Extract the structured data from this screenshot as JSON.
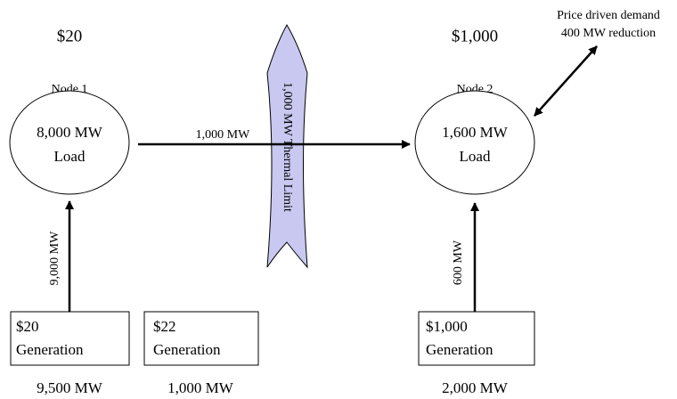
{
  "nodes": [
    {
      "price": "$20",
      "label": "Node 1",
      "load": "8,000 MW",
      "load_label": "Load"
    },
    {
      "price": "$1,000",
      "label": "Node 2",
      "load": "1,600 MW",
      "load_label": "Load"
    }
  ],
  "flow": "1,000 MW",
  "thermal_limit": "1,000 MW Thermal Limit",
  "demand_response": [
    "Price driven demand",
    "400 MW reduction"
  ],
  "injections": [
    "9,000 MW",
    "600 MW"
  ],
  "generators": [
    {
      "price": "$20",
      "label": "Generation",
      "capacity": "9,500 MW"
    },
    {
      "price": "$22",
      "label": "Generation",
      "capacity": "1,000 MW"
    },
    {
      "price": "$1,000",
      "label": "Generation",
      "capacity": "2,000 MW"
    }
  ]
}
